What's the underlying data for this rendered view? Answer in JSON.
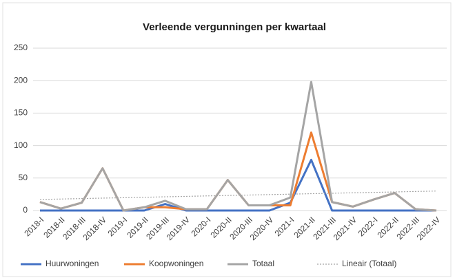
{
  "chart_data": {
    "type": "line",
    "title": "Verleende vergunningen per kwartaal",
    "categories": [
      "2018-I",
      "2018-II",
      "2018-III",
      "2018-IV",
      "2019-I",
      "2019-II",
      "2019-III",
      "2019-IV",
      "2020-I",
      "2020-II",
      "2020-III",
      "2020-IV",
      "2021-I",
      "2021-II",
      "2021-III",
      "2021-IV",
      "2022-I",
      "2022-II",
      "2022-III",
      "2022-IV"
    ],
    "series": [
      {
        "name": "Huurwoningen",
        "color": "#4472c4",
        "values": [
          0,
          0,
          0,
          0,
          0,
          0,
          10,
          0,
          0,
          0,
          0,
          0,
          12,
          78,
          0,
          0,
          0,
          0,
          0,
          0
        ]
      },
      {
        "name": "Koopwoningen",
        "color": "#ed7d31",
        "values": [
          13,
          3,
          12,
          65,
          0,
          5,
          5,
          2,
          2,
          47,
          8,
          8,
          8,
          120,
          13,
          6,
          17,
          27,
          2,
          0
        ]
      },
      {
        "name": "Totaal",
        "color": "#a5a5a5",
        "values": [
          13,
          3,
          12,
          65,
          0,
          5,
          15,
          2,
          2,
          47,
          8,
          8,
          20,
          198,
          13,
          6,
          17,
          27,
          2,
          0
        ]
      },
      {
        "name": "Lineair (Totaal)",
        "color": "#a5a5a5",
        "dash": true,
        "values": [
          17,
          17.7,
          18.4,
          19.1,
          19.7,
          20.4,
          21.1,
          21.8,
          22.5,
          23.2,
          23.8,
          24.5,
          25.2,
          25.9,
          26.6,
          27.3,
          27.9,
          28.6,
          29.3,
          30
        ]
      }
    ],
    "ylim": [
      0,
      250
    ],
    "yticks": [
      0,
      50,
      100,
      150,
      200,
      250
    ],
    "grid": true,
    "legend": "bottom"
  }
}
